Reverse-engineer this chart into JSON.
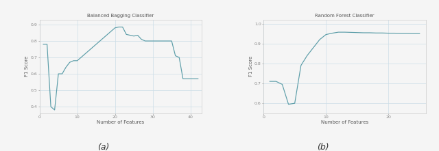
{
  "title_a": "Balanced Bagging Classifier",
  "title_b": "Random Forest Classifier",
  "xlabel": "Number of Features",
  "ylabel": "F1 Score",
  "label_a": "(a)",
  "label_b": "(b)",
  "line_color": "#5b9da8",
  "background_color": "#f5f5f5",
  "grid_color": "#ccdde8",
  "x_a": [
    1,
    2,
    3,
    4,
    5,
    6,
    7,
    8,
    9,
    10,
    11,
    12,
    13,
    14,
    15,
    16,
    17,
    18,
    19,
    20,
    21,
    22,
    23,
    24,
    25,
    26,
    27,
    28,
    29,
    30,
    31,
    32,
    33,
    34,
    35,
    36,
    37,
    38,
    39,
    40,
    41,
    42
  ],
  "y_a": [
    0.78,
    0.78,
    0.4,
    0.38,
    0.6,
    0.6,
    0.64,
    0.67,
    0.68,
    0.68,
    0.7,
    0.72,
    0.74,
    0.76,
    0.78,
    0.8,
    0.82,
    0.84,
    0.86,
    0.88,
    0.885,
    0.885,
    0.84,
    0.835,
    0.83,
    0.835,
    0.81,
    0.8,
    0.8,
    0.8,
    0.8,
    0.8,
    0.8,
    0.8,
    0.8,
    0.71,
    0.7,
    0.57,
    0.57,
    0.57,
    0.57,
    0.57
  ],
  "xlim_a": [
    0,
    43
  ],
  "ylim_a": [
    0.36,
    0.93
  ],
  "xticks_a": [
    0,
    10,
    20,
    30,
    40
  ],
  "yticks_a": [
    0.4,
    0.5,
    0.6,
    0.7,
    0.8,
    0.9
  ],
  "x_b": [
    1,
    2,
    3,
    4,
    5,
    6,
    7,
    8,
    9,
    10,
    11,
    12,
    13,
    14,
    15,
    16,
    17,
    18,
    19,
    20,
    21,
    22,
    23,
    24,
    25
  ],
  "y_b": [
    0.71,
    0.71,
    0.695,
    0.595,
    0.6,
    0.79,
    0.84,
    0.88,
    0.92,
    0.945,
    0.952,
    0.957,
    0.957,
    0.956,
    0.955,
    0.954,
    0.954,
    0.953,
    0.953,
    0.952,
    0.952,
    0.951,
    0.951,
    0.95,
    0.95
  ],
  "xlim_b": [
    0,
    26
  ],
  "ylim_b": [
    0.55,
    1.02
  ],
  "xticks_b": [
    0,
    10,
    20
  ],
  "yticks_b": [
    0.6,
    0.7,
    0.8,
    0.9,
    1.0
  ]
}
